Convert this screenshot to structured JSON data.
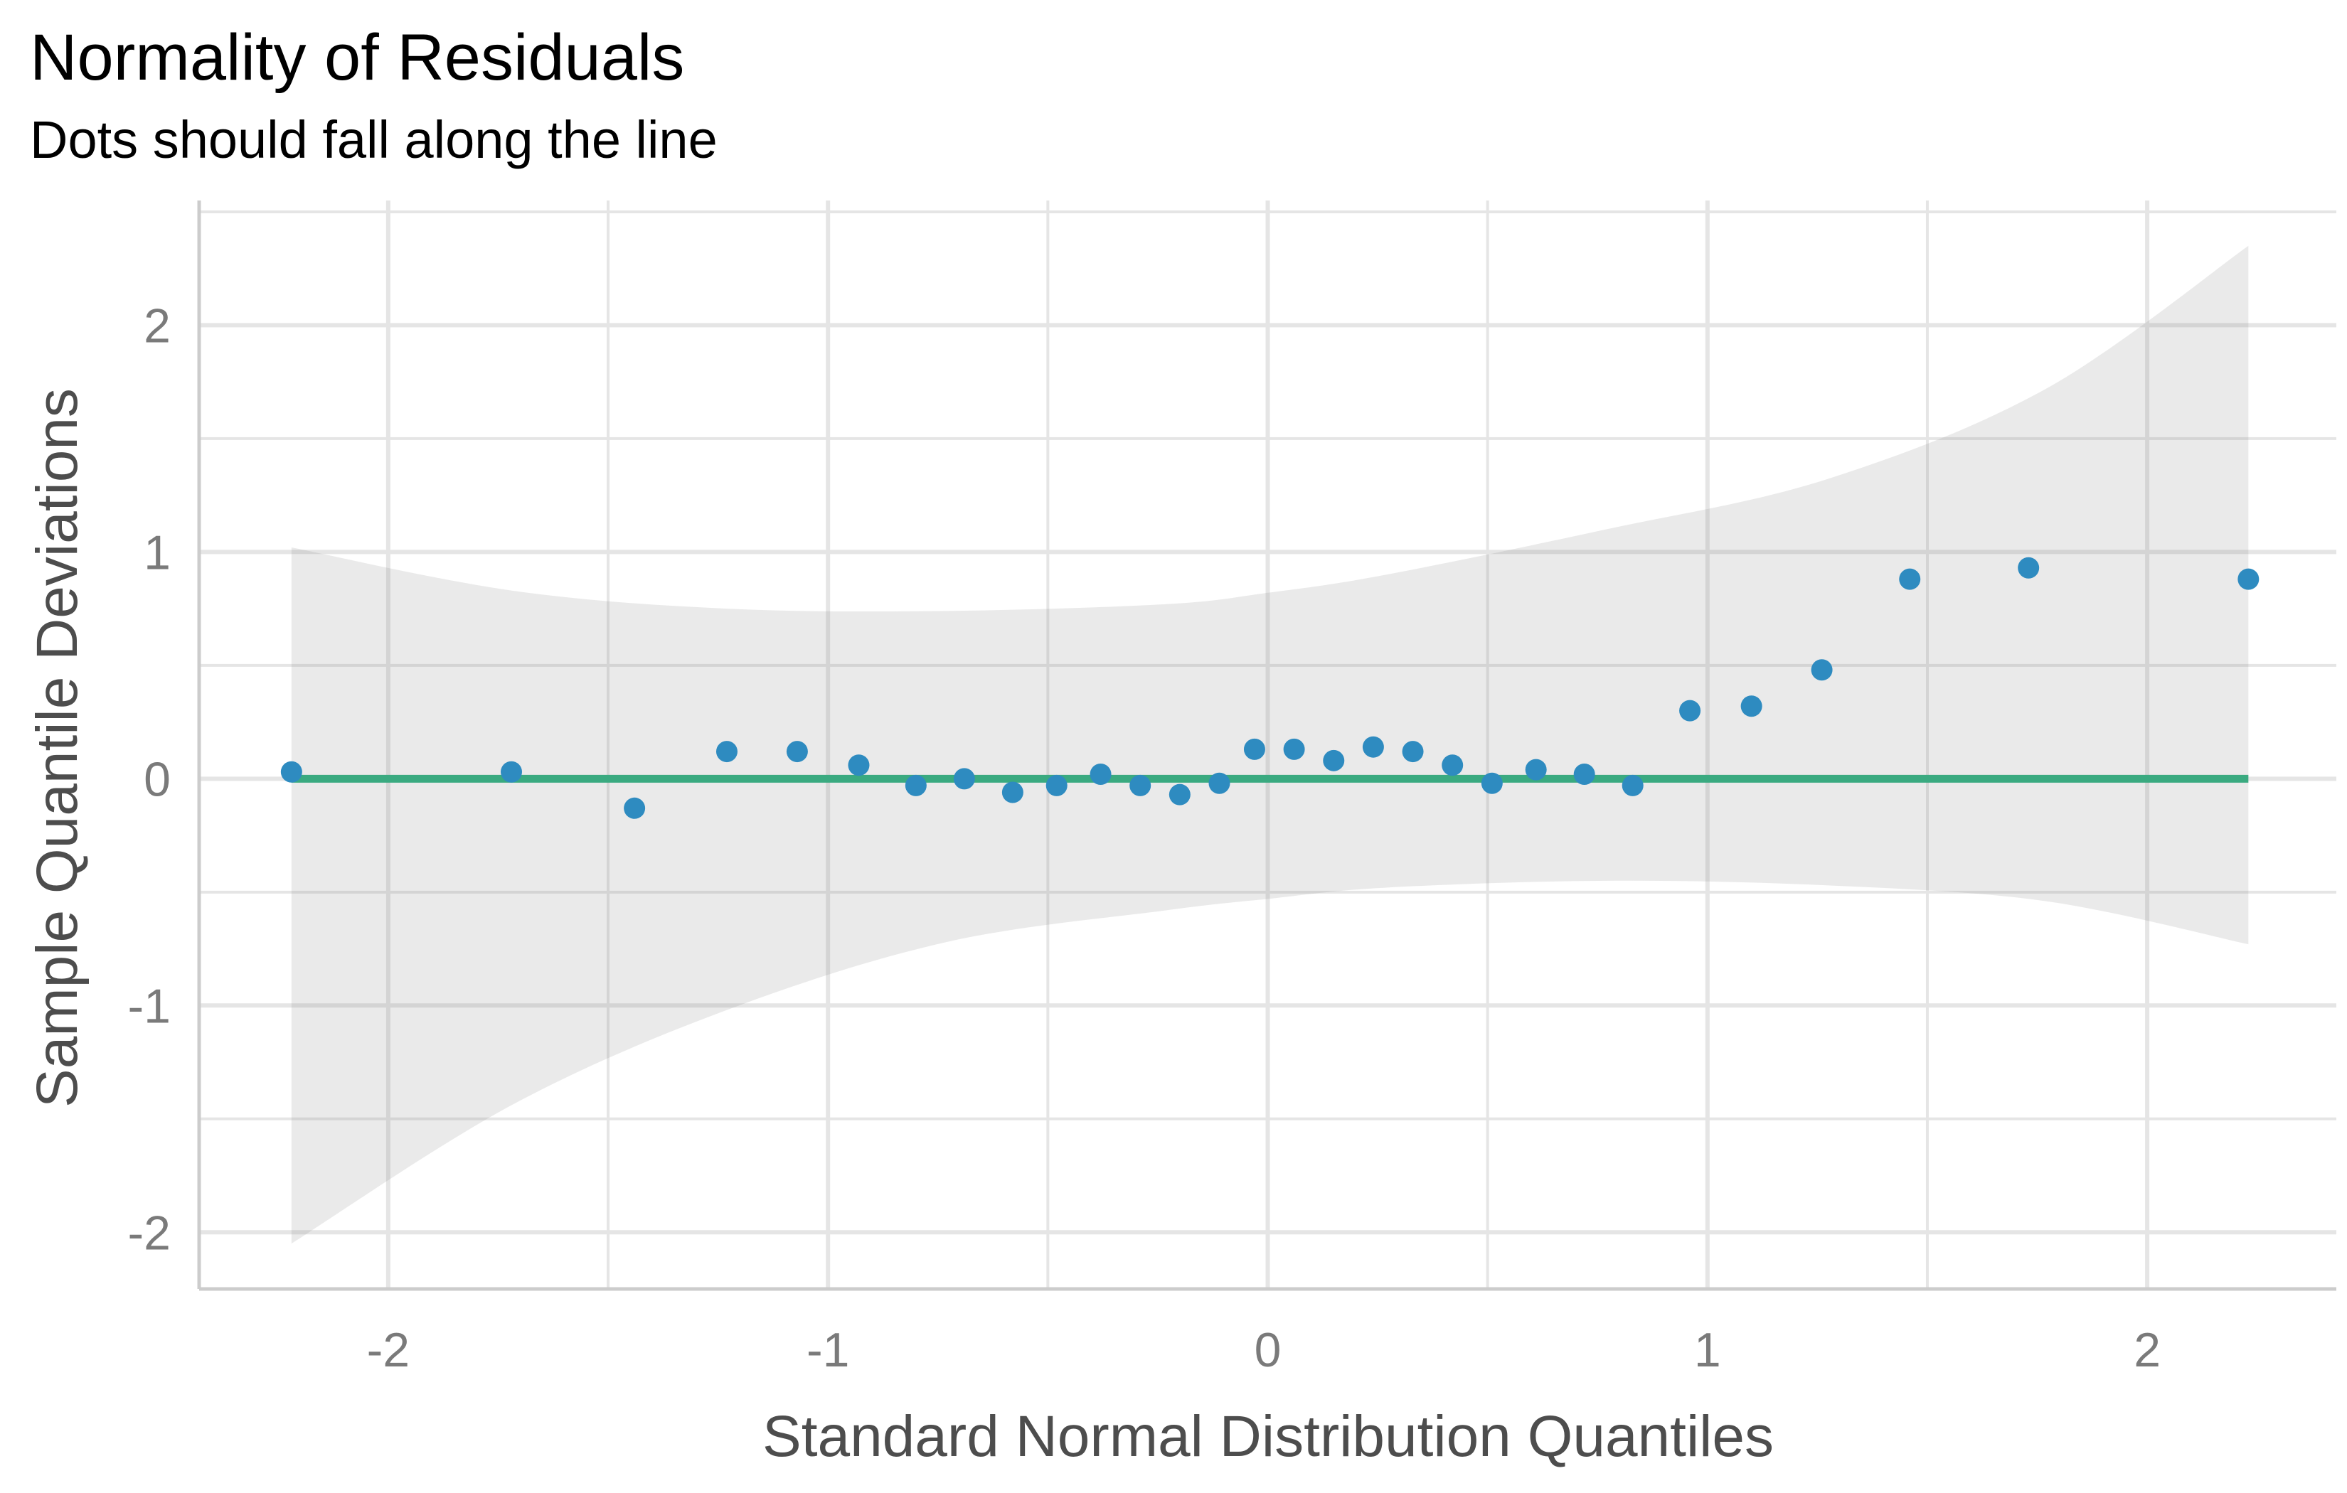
{
  "chart_data": {
    "type": "scatter",
    "title": "Normality of Residuals",
    "subtitle": "Dots should fall along the line",
    "xlabel": "Standard Normal Distribution Quantiles",
    "ylabel": "Sample Quantile Deviations",
    "xlim": [
      -2.43,
      2.43
    ],
    "ylim": [
      -2.25,
      2.55
    ],
    "x_ticks": [
      -2,
      -1,
      0,
      1,
      2
    ],
    "x_tick_labels": [
      "-2",
      "-1",
      "0",
      "1",
      "2"
    ],
    "y_ticks": [
      -2,
      -1,
      0,
      1,
      2
    ],
    "y_tick_labels": [
      "-2",
      "-1",
      "0",
      "1",
      "2"
    ],
    "grid": true,
    "colors": {
      "points": "#2e8bc0",
      "reference_line": "#3aaa80",
      "confidence_band": "#ebebeb",
      "grid": "#e5e5e5",
      "axis": "#cccccc"
    },
    "points": [
      {
        "x": -2.22,
        "y": 0.03
      },
      {
        "x": -1.72,
        "y": 0.03
      },
      {
        "x": -1.44,
        "y": -0.13
      },
      {
        "x": -1.23,
        "y": 0.12
      },
      {
        "x": -1.07,
        "y": 0.12
      },
      {
        "x": -0.93,
        "y": 0.06
      },
      {
        "x": -0.8,
        "y": -0.03
      },
      {
        "x": -0.69,
        "y": 0.0
      },
      {
        "x": -0.58,
        "y": -0.06
      },
      {
        "x": -0.48,
        "y": -0.03
      },
      {
        "x": -0.38,
        "y": 0.02
      },
      {
        "x": -0.29,
        "y": -0.03
      },
      {
        "x": -0.2,
        "y": -0.07
      },
      {
        "x": -0.11,
        "y": -0.02
      },
      {
        "x": -0.03,
        "y": 0.13
      },
      {
        "x": 0.06,
        "y": 0.13
      },
      {
        "x": 0.15,
        "y": 0.08
      },
      {
        "x": 0.24,
        "y": 0.14
      },
      {
        "x": 0.33,
        "y": 0.12
      },
      {
        "x": 0.42,
        "y": 0.06
      },
      {
        "x": 0.51,
        "y": -0.02
      },
      {
        "x": 0.61,
        "y": 0.04
      },
      {
        "x": 0.72,
        "y": 0.02
      },
      {
        "x": 0.83,
        "y": -0.03
      },
      {
        "x": 0.96,
        "y": 0.3
      },
      {
        "x": 1.1,
        "y": 0.32
      },
      {
        "x": 1.26,
        "y": 0.48
      },
      {
        "x": 1.46,
        "y": 0.88
      },
      {
        "x": 1.73,
        "y": 0.93
      },
      {
        "x": 2.23,
        "y": 0.88
      }
    ],
    "reference_line": {
      "x": [
        -2.22,
        2.23
      ],
      "y": [
        0,
        0
      ]
    },
    "confidence_band": {
      "x": [
        -2.22,
        -1.72,
        -1.23,
        -0.73,
        -0.23,
        0.0,
        0.27,
        0.77,
        1.27,
        1.77,
        2.23
      ],
      "upper": [
        1.02,
        0.83,
        0.75,
        0.74,
        0.77,
        0.82,
        0.9,
        1.1,
        1.32,
        1.72,
        2.35
      ],
      "lower": [
        -2.05,
        -1.44,
        -1.02,
        -0.72,
        -0.58,
        -0.53,
        -0.48,
        -0.45,
        -0.47,
        -0.54,
        -0.73
      ]
    }
  }
}
